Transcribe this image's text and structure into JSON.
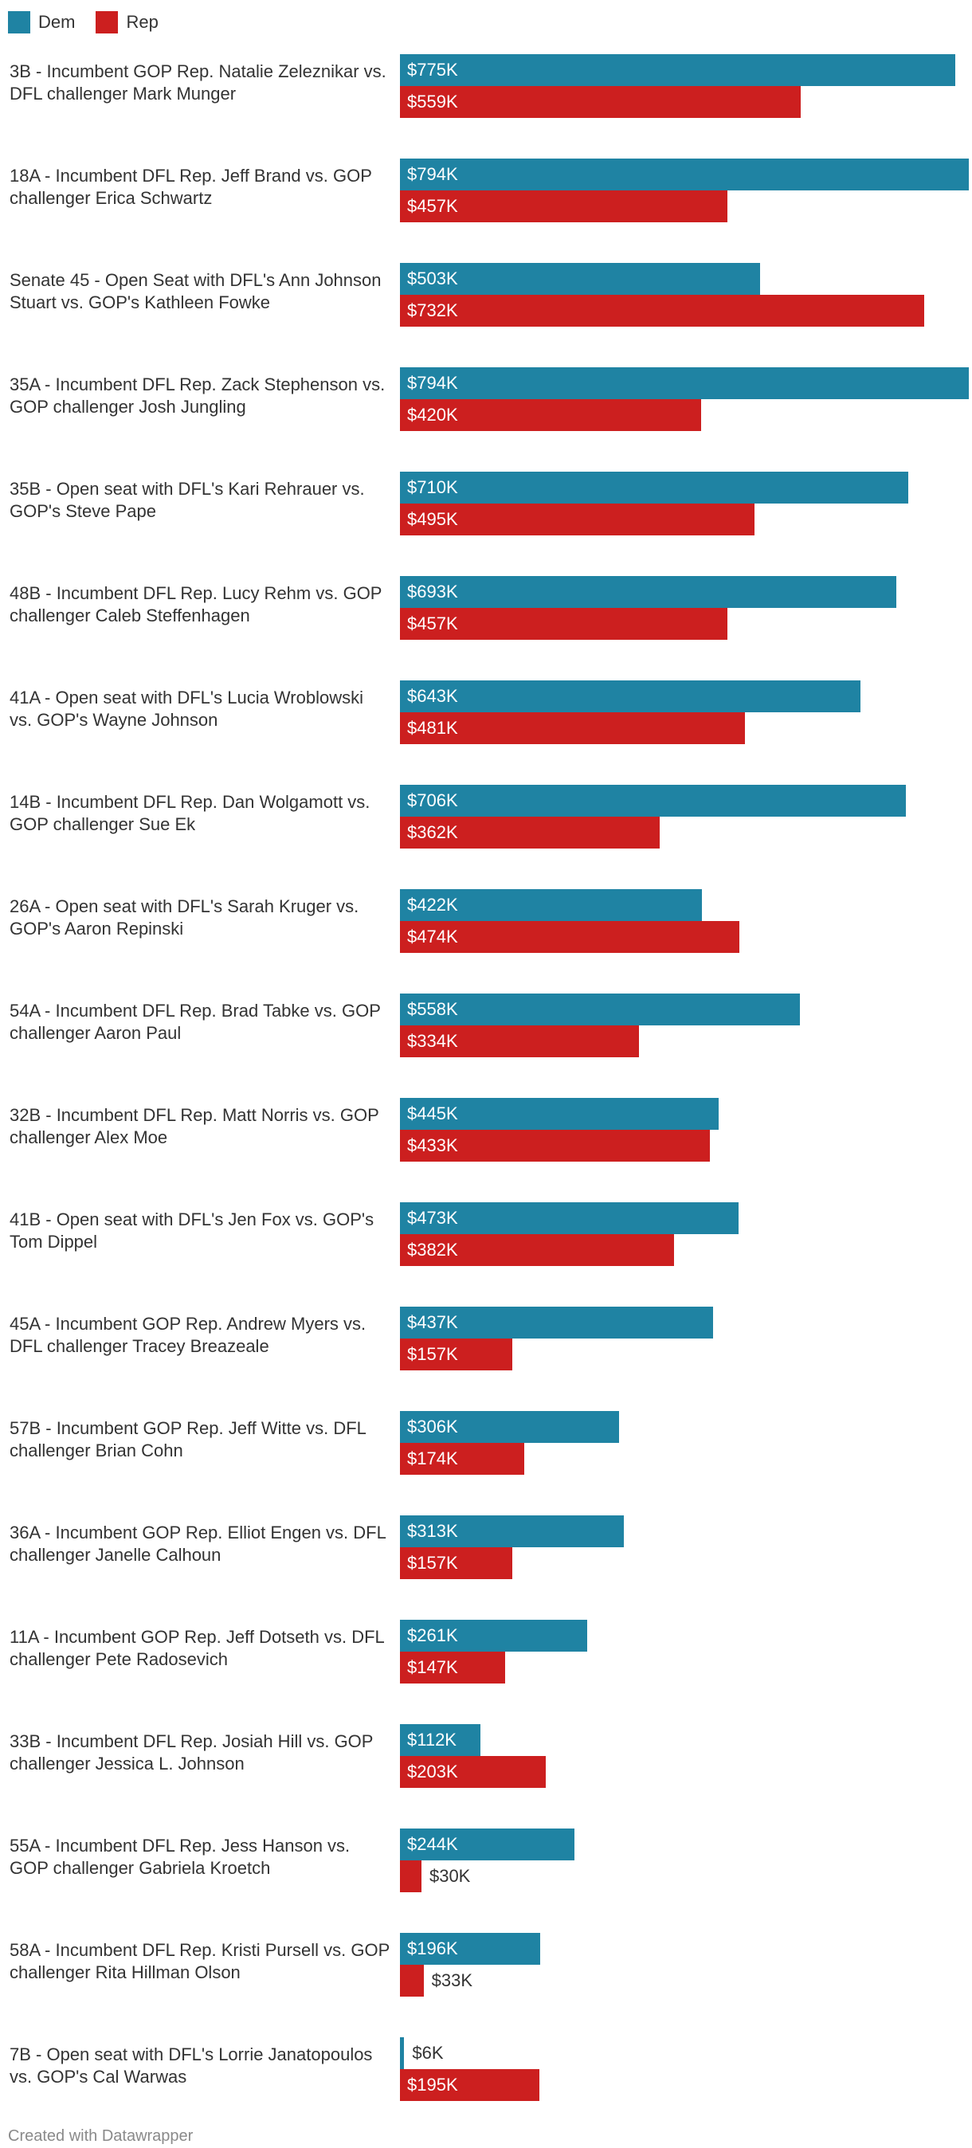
{
  "colors": {
    "dem": "#1f83a3",
    "rep": "#cc1f1f"
  },
  "legend": [
    {
      "name": "Dem",
      "color": "#1f83a3"
    },
    {
      "name": "Rep",
      "color": "#cc1f1f"
    }
  ],
  "footer": "Created with Datawrapper",
  "chart_data": {
    "type": "bar",
    "orientation": "horizontal",
    "grouped": true,
    "xlim": [
      0,
      794
    ],
    "unit": "$K",
    "series": [
      {
        "name": "Dem",
        "values": [
          775,
          794,
          503,
          794,
          710,
          693,
          643,
          706,
          422,
          558,
          445,
          473,
          437,
          306,
          313,
          261,
          112,
          244,
          196,
          6
        ]
      },
      {
        "name": "Rep",
        "values": [
          559,
          457,
          732,
          420,
          495,
          457,
          481,
          362,
          474,
          334,
          433,
          382,
          157,
          174,
          157,
          147,
          203,
          30,
          33,
          195
        ]
      }
    ],
    "value_labels": {
      "Dem": [
        "$775K",
        "$794K",
        "$503K",
        "$794K",
        "$710K",
        "$693K",
        "$643K",
        "$706K",
        "$422K",
        "$558K",
        "$445K",
        "$473K",
        "$437K",
        "$306K",
        "$313K",
        "$261K",
        "$112K",
        "$244K",
        "$196K",
        "$6K"
      ],
      "Rep": [
        "$559K",
        "$457K",
        "$732K",
        "$420K",
        "$495K",
        "$457K",
        "$481K",
        "$362K",
        "$474K",
        "$334K",
        "$433K",
        "$382K",
        "$157K",
        "$174K",
        "$157K",
        "$147K",
        "$203K",
        "$30K",
        "$33K",
        "$195K"
      ]
    },
    "categories": [
      "3B - Incumbent GOP Rep. Natalie Zeleznikar vs. DFL challenger Mark Munger",
      "18A - Incumbent DFL Rep. Jeff Brand vs. GOP challenger Erica Schwartz",
      "Senate 45 - Open Seat with DFL's Ann Johnson Stuart vs. GOP's Kathleen Fowke",
      "35A - Incumbent DFL Rep. Zack Stephenson vs. GOP challenger Josh Jungling",
      "35B - Open seat with DFL's Kari Rehrauer vs. GOP's Steve Pape",
      "48B - Incumbent DFL Rep. Lucy Rehm vs. GOP challenger Caleb Steffenhagen",
      "41A - Open seat with DFL's Lucia Wroblowski vs. GOP's Wayne Johnson",
      "14B - Incumbent DFL Rep. Dan Wolgamott vs. GOP challenger Sue Ek",
      "26A - Open seat with DFL's Sarah Kruger vs. GOP's Aaron Repinski",
      "54A - Incumbent DFL Rep. Brad Tabke vs. GOP challenger Aaron Paul",
      "32B - Incumbent DFL Rep. Matt Norris vs. GOP challenger Alex Moe",
      "41B - Open seat with DFL's Jen Fox vs. GOP's Tom Dippel",
      "45A - Incumbent GOP Rep. Andrew Myers vs. DFL challenger Tracey Breazeale",
      "57B - Incumbent GOP Rep. Jeff Witte vs. DFL challenger Brian Cohn",
      "36A - Incumbent GOP Rep. Elliot Engen vs. DFL challenger Janelle Calhoun",
      "11A - Incumbent GOP Rep. Jeff Dotseth vs. DFL challenger Pete Radosevich",
      "33B - Incumbent DFL Rep. Josiah Hill vs. GOP challenger Jessica L. Johnson",
      "55A - Incumbent DFL Rep. Jess Hanson vs. GOP challenger Gabriela Kroetch",
      "58A - Incumbent DFL Rep. Kristi Pursell vs. GOP challenger Rita Hillman Olson",
      "7B - Open seat with DFL's Lorrie Janatopoulos vs. GOP's Cal Warwas"
    ]
  }
}
